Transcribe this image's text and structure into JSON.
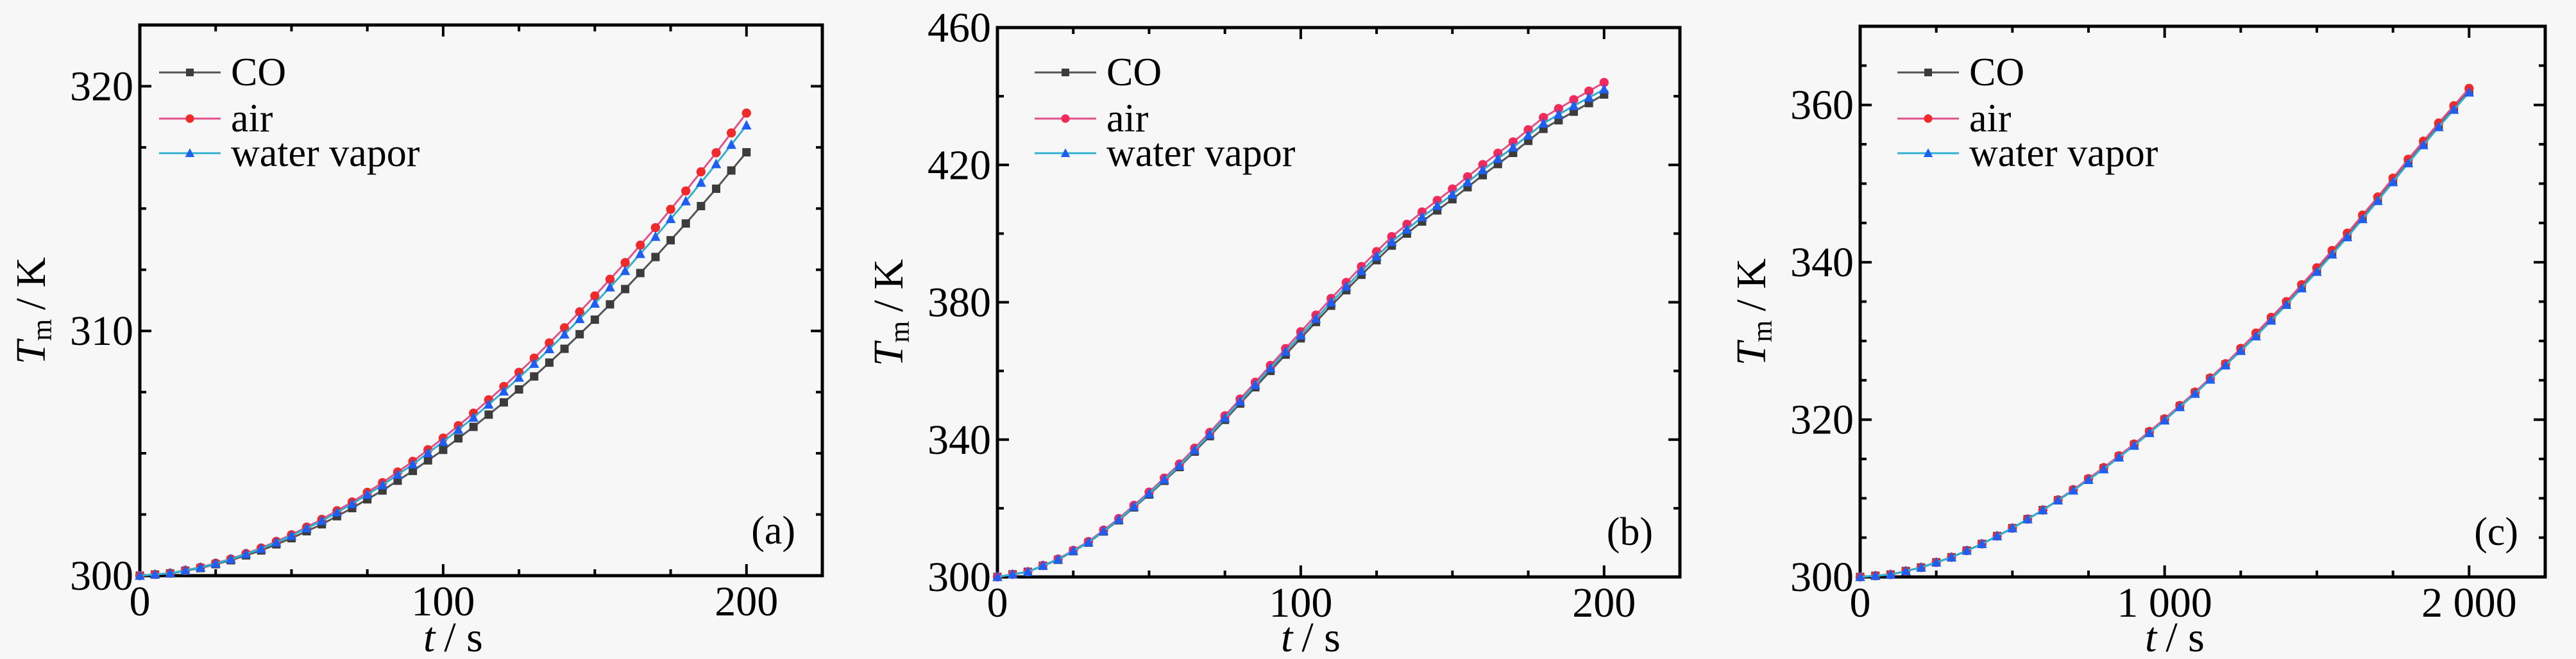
{
  "chart_data": [
    {
      "type": "line",
      "panel_label": "(a)",
      "xlabel": {
        "var": "t",
        "unit": "/ s"
      },
      "ylabel": {
        "var": "T",
        "sub": "m",
        "unit": "/ K"
      },
      "xlim": [
        0,
        225
      ],
      "ylim": [
        300,
        322.5
      ],
      "xticks": [
        0,
        100,
        200
      ],
      "xtick_labels": [
        "0",
        "100",
        "200"
      ],
      "yticks": [
        300,
        310,
        320
      ],
      "ytick_labels": [
        "300",
        "310",
        "320"
      ],
      "x_minor_step": 25,
      "y_minor_step": 2.5,
      "legend_position": "top-left",
      "x": [
        0,
        10,
        20,
        30,
        40,
        50,
        60,
        70,
        80,
        90,
        100,
        110,
        120,
        130,
        140,
        150,
        160,
        170,
        180,
        190,
        200
      ],
      "series": [
        {
          "name": "CO",
          "marker": "square",
          "color": "#3c3c3c",
          "line_color": "#555555",
          "values": [
            300,
            300.09,
            300.31,
            300.63,
            301.03,
            301.53,
            302.1,
            302.76,
            303.48,
            304.28,
            305.14,
            306.08,
            307.08,
            308.14,
            309.27,
            310.46,
            311.71,
            313.02,
            314.39,
            315.81,
            317.3
          ]
        },
        {
          "name": "air",
          "marker": "circle",
          "color": "#f02a2a",
          "line_color": "#e0508a",
          "values": [
            300,
            300.1,
            300.34,
            300.68,
            301.13,
            301.67,
            302.3,
            303.01,
            303.8,
            304.67,
            305.62,
            306.64,
            307.73,
            308.89,
            310.13,
            311.43,
            312.79,
            314.22,
            315.72,
            317.28,
            318.9
          ]
        },
        {
          "name": "water vapor",
          "marker": "triangle",
          "color": "#1e5ef0",
          "line_color": "#30b0d0",
          "values": [
            300,
            300.1,
            300.33,
            300.67,
            301.1,
            301.63,
            302.24,
            302.93,
            303.7,
            304.55,
            305.47,
            306.46,
            307.53,
            308.66,
            309.86,
            311.12,
            312.45,
            313.85,
            315.3,
            316.82,
            318.4
          ]
        }
      ]
    },
    {
      "type": "line",
      "panel_label": "(b)",
      "xlabel": {
        "var": "t",
        "unit": "/ s"
      },
      "ylabel": {
        "var": "T",
        "sub": "m",
        "unit": "/ K"
      },
      "xlim": [
        0,
        225
      ],
      "ylim": [
        300,
        460
      ],
      "xticks": [
        0,
        100,
        200
      ],
      "xtick_labels": [
        "0",
        "100",
        "200"
      ],
      "yticks": [
        300,
        340,
        380,
        420,
        460
      ],
      "ytick_labels": [
        "300",
        "340",
        "380",
        "420",
        "460"
      ],
      "x_minor_step": 25,
      "y_minor_step": 20,
      "legend_position": "top-left",
      "x": [
        0,
        10,
        20,
        30,
        40,
        50,
        60,
        70,
        80,
        90,
        100,
        110,
        120,
        130,
        140,
        150,
        160,
        170,
        180,
        190,
        200
      ],
      "series": [
        {
          "name": "CO",
          "marker": "square",
          "color": "#3c3c3c",
          "line_color": "#555555",
          "values": [
            300,
            301.5,
            305,
            310,
            316.5,
            324,
            332,
            341,
            350.5,
            360,
            369.5,
            379,
            388,
            396.5,
            403.5,
            410,
            417,
            423.5,
            430.5,
            435.5,
            440.5
          ]
        },
        {
          "name": "air",
          "marker": "circle",
          "color": "#f02a5a",
          "line_color": "#e0508a",
          "values": [
            300,
            301.5,
            305.2,
            310.3,
            317,
            324.7,
            332.9,
            342.1,
            351.8,
            361.6,
            371.4,
            381.1,
            390.4,
            399.1,
            406.3,
            413,
            420.1,
            426.7,
            433.8,
            439,
            444
          ]
        },
        {
          "name": "water vapor",
          "marker": "triangle",
          "color": "#1e5ef0",
          "line_color": "#30b0d0",
          "values": [
            300,
            301.5,
            305.1,
            310.1,
            316.7,
            324.3,
            332.4,
            341.5,
            351.1,
            360.8,
            370.4,
            380,
            389.1,
            397.6,
            404.8,
            411.4,
            418.5,
            425.1,
            432.1,
            437.2,
            442
          ]
        }
      ]
    },
    {
      "type": "line",
      "panel_label": "(c)",
      "xlabel": {
        "var": "t",
        "unit": "/ s"
      },
      "ylabel": {
        "var": "T",
        "sub": "m",
        "unit": "/ K"
      },
      "xlim": [
        0,
        2250
      ],
      "ylim": [
        300,
        370
      ],
      "xticks": [
        0,
        1000,
        2000
      ],
      "xtick_labels": [
        "0",
        "1 000",
        "2 000"
      ],
      "yticks": [
        300,
        320,
        340,
        360
      ],
      "ytick_labels": [
        "300",
        "320",
        "340",
        "360"
      ],
      "x_minor_step": 250,
      "y_minor_step": 5,
      "legend_position": "top-left",
      "x": [
        0,
        100,
        200,
        300,
        400,
        500,
        600,
        700,
        800,
        900,
        1000,
        1100,
        1200,
        1300,
        1400,
        1500,
        1600,
        1700,
        1800,
        1900,
        2000
      ],
      "series": [
        {
          "name": "CO",
          "marker": "square",
          "color": "#3c3c3c",
          "line_color": "#555555",
          "values": [
            300,
            300.3,
            301.2,
            302.5,
            304.2,
            306.2,
            308.5,
            311,
            313.8,
            316.8,
            320,
            323.4,
            327,
            330.8,
            334.8,
            339,
            343.4,
            348,
            352.8,
            357.4,
            361.8
          ]
        },
        {
          "name": "air",
          "marker": "circle",
          "color": "#f02a2a",
          "line_color": "#e0508a",
          "values": [
            300,
            300.3,
            301.2,
            302.5,
            304.2,
            306.2,
            308.5,
            311.1,
            313.9,
            316.9,
            320.1,
            323.5,
            327.1,
            331,
            335,
            339.3,
            343.7,
            348.3,
            353.1,
            357.7,
            362.1
          ]
        },
        {
          "name": "water vapor",
          "marker": "triangle",
          "color": "#1e5ef0",
          "line_color": "#30b0d0",
          "values": [
            300,
            300.3,
            301.2,
            302.5,
            304.2,
            306.2,
            308.5,
            311,
            313.7,
            316.7,
            319.9,
            323.3,
            326.9,
            330.6,
            334.6,
            338.8,
            343.2,
            347.8,
            352.6,
            357.2,
            361.6
          ]
        }
      ]
    }
  ]
}
